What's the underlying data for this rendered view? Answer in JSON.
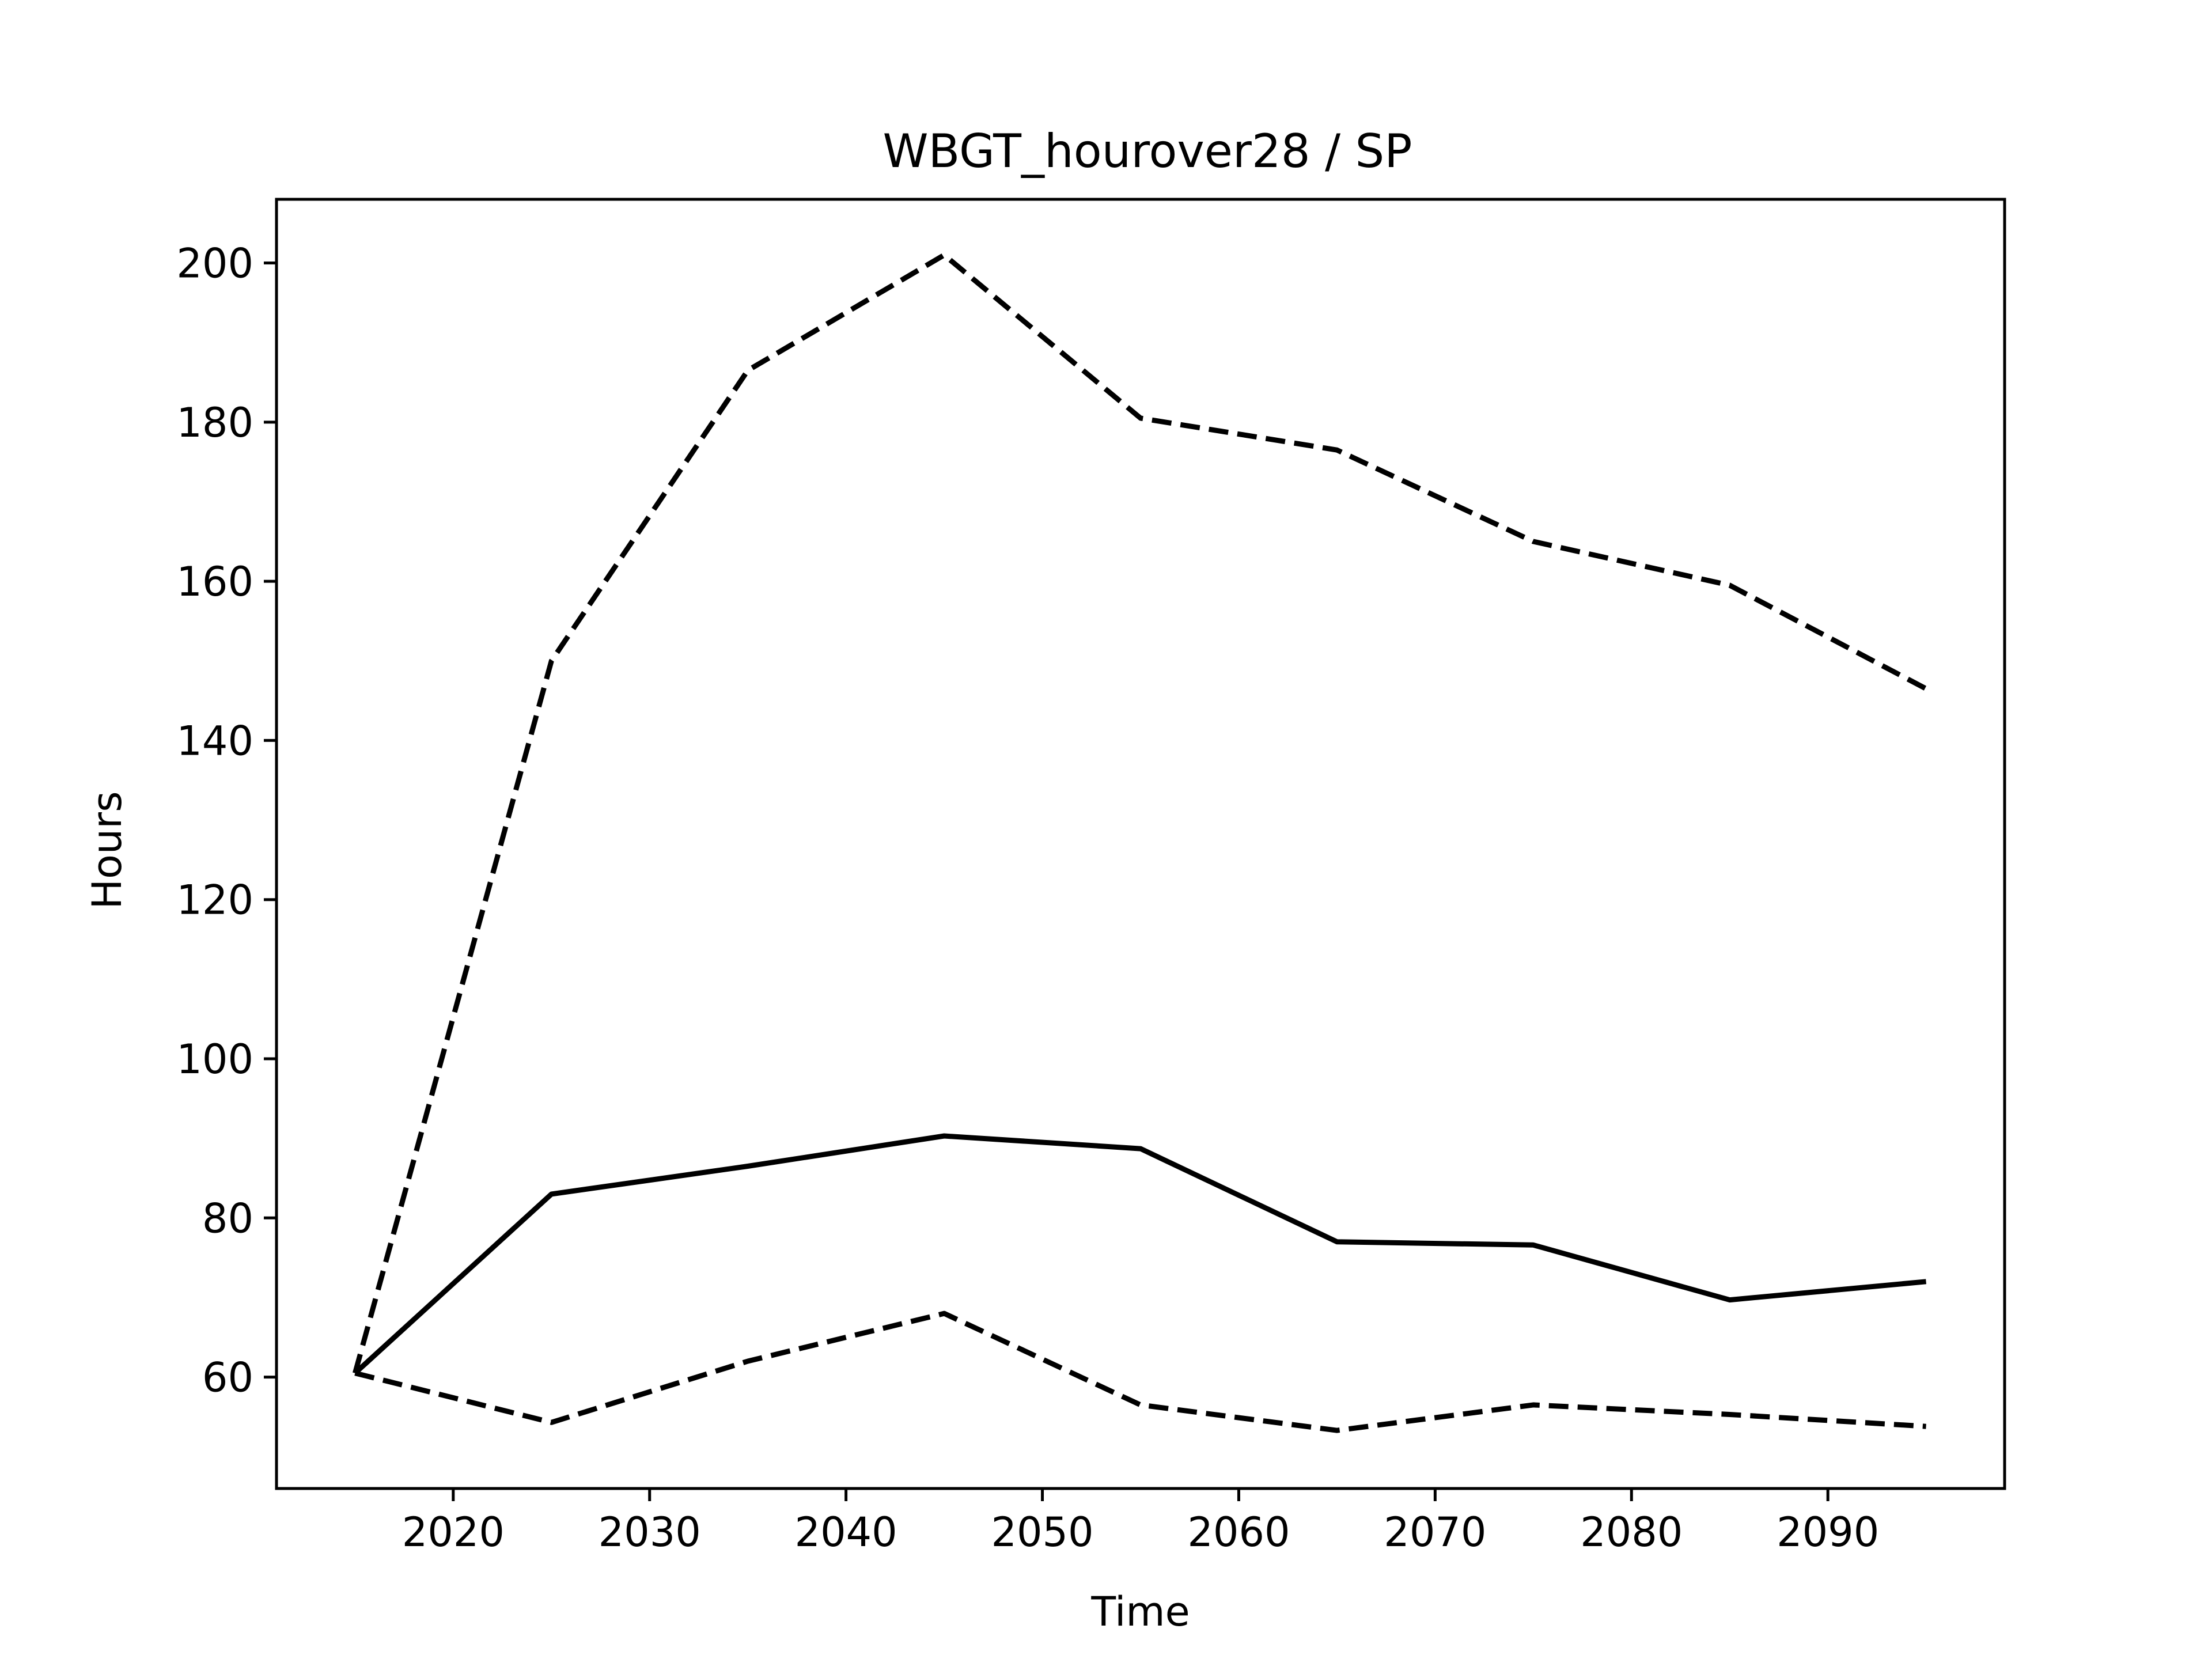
{
  "chart_data": {
    "type": "line",
    "title": "WBGT_hourover28 / SP",
    "xlabel": "Time",
    "ylabel": "Hours",
    "xlim": [
      2011,
      2099
    ],
    "ylim": [
      46,
      208
    ],
    "x_ticks": [
      2020,
      2030,
      2040,
      2050,
      2060,
      2070,
      2080,
      2090
    ],
    "y_ticks": [
      60,
      80,
      100,
      120,
      140,
      160,
      180,
      200
    ],
    "grid": false,
    "legend": "none",
    "x": [
      2015,
      2025,
      2035,
      2045,
      2055,
      2065,
      2075,
      2085,
      2095
    ],
    "series": [
      {
        "style": "dashed",
        "color": "#000000",
        "values": [
          60.5,
          150,
          186.5,
          201,
          180.5,
          176.5,
          165,
          159.5,
          146.5
        ]
      },
      {
        "style": "solid",
        "color": "#000000",
        "values": [
          60.5,
          83,
          86.5,
          90.3,
          88.7,
          77,
          76.6,
          69.7,
          72
        ]
      },
      {
        "style": "dashed",
        "color": "#000000",
        "values": [
          60.5,
          54.3,
          62,
          68,
          56.5,
          53.3,
          56.5,
          55.3,
          53.8
        ]
      }
    ]
  }
}
